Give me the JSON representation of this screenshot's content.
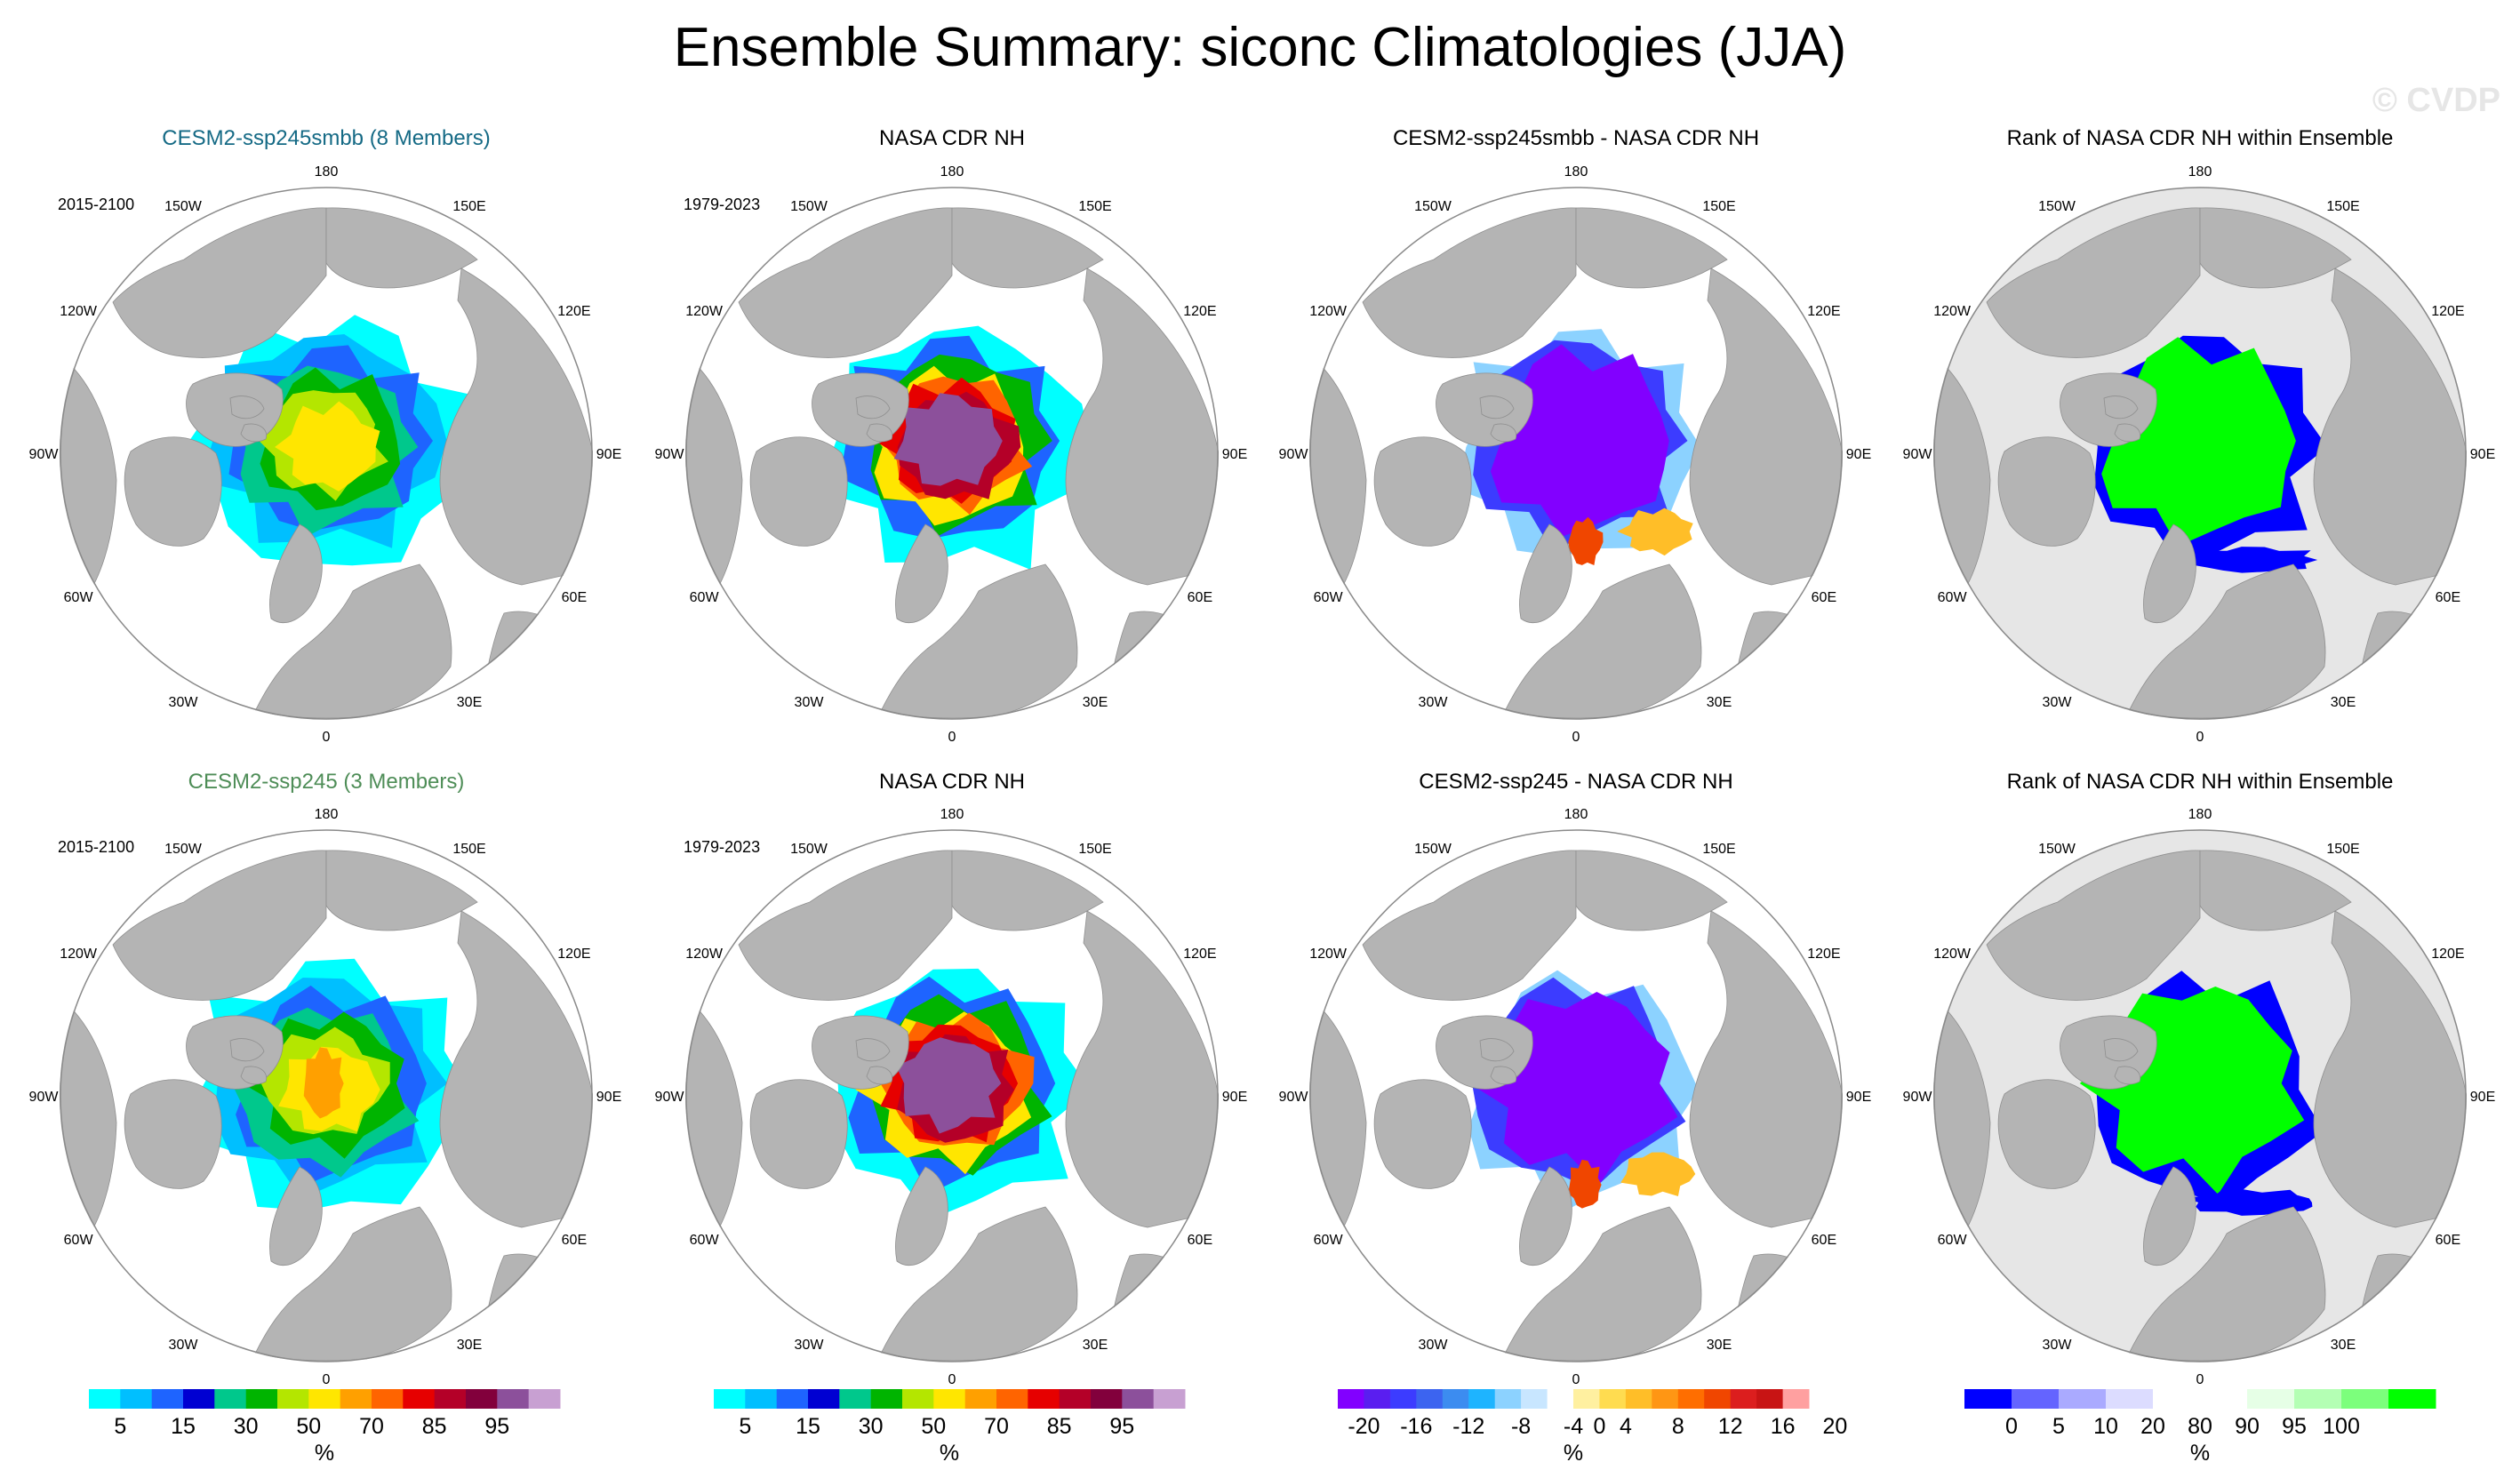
{
  "title": "Ensemble Summary: siconc Climatologies (JJA)",
  "watermark": "© CVDP",
  "colors": {
    "land": "#b4b4b4",
    "rank_bg": "#e6e6e6",
    "title_smbb": "#156a85",
    "title_ssp": "#4e8d57",
    "conc_palette": [
      "#00ffff",
      "#00bfff",
      "#1e64ff",
      "#0000d2",
      "#00c88c",
      "#00b400",
      "#b4e600",
      "#ffe600",
      "#ffa000",
      "#ff6400",
      "#e60000",
      "#b40028",
      "#82003c",
      "#8c509b",
      "#c8a0d2"
    ],
    "diff_palette": [
      "#8200ff",
      "#5a1ef0",
      "#3c3cff",
      "#3c64f0",
      "#3c8cf0",
      "#1eb4ff",
      "#8cd2ff",
      "#c8e6ff",
      "#ffffff",
      "#fff0a0",
      "#ffdc50",
      "#ffbe28",
      "#ff9614",
      "#ff6e00",
      "#f04600",
      "#dc1e1e",
      "#c81414",
      "#ffa0a0"
    ],
    "rank_palette": [
      "#0000ff",
      "#6464ff",
      "#aaaaff",
      "#dcdcff",
      "#ffffff",
      "#ffffff",
      "#e6ffe6",
      "#b4ffb4",
      "#7cff7c",
      "#00ff00"
    ]
  },
  "rows": [
    {
      "panels": [
        {
          "title": "CESM2-ssp245smbb (8 Members)",
          "type": "conc",
          "period": "2015-2100"
        },
        {
          "title": "NASA CDR NH",
          "type": "obs",
          "period": "1979-2023"
        },
        {
          "title": "CESM2-ssp245smbb - NASA CDR NH",
          "type": "diff"
        },
        {
          "title": "Rank of NASA CDR NH within Ensemble",
          "type": "rank"
        }
      ]
    },
    {
      "panels": [
        {
          "title": "CESM2-ssp245 (3 Members)",
          "type": "conc",
          "period": "2015-2100"
        },
        {
          "title": "NASA CDR NH",
          "type": "obs",
          "period": "1979-2023"
        },
        {
          "title": "CESM2-ssp245 - NASA CDR NH",
          "type": "diff"
        },
        {
          "title": "Rank of NASA CDR NH within Ensemble",
          "type": "rank"
        }
      ]
    }
  ],
  "lon_labels": [
    "180",
    "150E",
    "120E",
    "90E",
    "60E",
    "30E",
    "0",
    "30W",
    "60W",
    "90W",
    "120W",
    "150W"
  ],
  "legends": [
    {
      "ticks": [
        "5",
        "15",
        "30",
        "50",
        "70",
        "85",
        "95"
      ],
      "unit": "%"
    },
    {
      "ticks": [
        "5",
        "15",
        "30",
        "50",
        "70",
        "85",
        "95"
      ],
      "unit": "%"
    },
    {
      "ticks": [
        "-20",
        "-16",
        "-12",
        "-8",
        "-4",
        "0",
        "4",
        "8",
        "12",
        "16",
        "20"
      ],
      "unit": "%"
    },
    {
      "ticks": [
        "0",
        "5",
        "10",
        "20",
        "80",
        "90",
        "95",
        "100"
      ],
      "unit": "%"
    }
  ],
  "chart_data": {
    "type": "heatmap",
    "title": "Ensemble Summary: siconc Climatologies (JJA)",
    "projection": "north polar stereographic",
    "panels": [
      {
        "title": "CESM2-ssp245smbb (8 Members)",
        "period": "2015-2100",
        "field": "siconc",
        "units": "%",
        "central_arctic_range": [
          50,
          70
        ]
      },
      {
        "title": "NASA CDR NH",
        "period": "1979-2023",
        "field": "siconc",
        "units": "%",
        "central_arctic_range": [
          95,
          100
        ]
      },
      {
        "title": "CESM2-ssp245smbb - NASA CDR NH",
        "field": "difference",
        "units": "%",
        "central_arctic_range": [
          -20,
          -20
        ]
      },
      {
        "title": "Rank of NASA CDR NH within Ensemble",
        "field": "rank",
        "units": "%",
        "central_arctic_range": [
          100,
          100
        ]
      },
      {
        "title": "CESM2-ssp245 (3 Members)",
        "period": "2015-2100",
        "field": "siconc",
        "units": "%",
        "central_arctic_range": [
          50,
          80
        ]
      },
      {
        "title": "NASA CDR NH",
        "period": "1979-2023",
        "field": "siconc",
        "units": "%",
        "central_arctic_range": [
          95,
          100
        ]
      },
      {
        "title": "CESM2-ssp245 - NASA CDR NH",
        "field": "difference",
        "units": "%",
        "central_arctic_range": [
          -20,
          -20
        ]
      },
      {
        "title": "Rank of NASA CDR NH within Ensemble",
        "field": "rank",
        "units": "%",
        "central_arctic_range": [
          100,
          100
        ]
      }
    ],
    "colorbars": [
      {
        "levels": [
          5,
          10,
          15,
          20,
          30,
          40,
          50,
          60,
          70,
          80,
          85,
          90,
          95,
          99
        ],
        "ticks": [
          5,
          15,
          30,
          50,
          70,
          85,
          95
        ]
      },
      {
        "levels": [
          5,
          10,
          15,
          20,
          30,
          40,
          50,
          60,
          70,
          80,
          85,
          90,
          95,
          99
        ],
        "ticks": [
          5,
          15,
          30,
          50,
          70,
          85,
          95
        ]
      },
      {
        "levels": [
          -20,
          -18,
          -16,
          -14,
          -12,
          -10,
          -8,
          -6,
          -4,
          0,
          4,
          6,
          8,
          10,
          12,
          14,
          16,
          18,
          20
        ],
        "ticks": [
          -20,
          -16,
          -12,
          -8,
          -4,
          0,
          4,
          8,
          12,
          16,
          20
        ]
      },
      {
        "levels": [
          0,
          5,
          10,
          20,
          80,
          90,
          95,
          100
        ],
        "ticks": [
          0,
          5,
          10,
          20,
          80,
          90,
          95,
          100
        ]
      }
    ]
  }
}
